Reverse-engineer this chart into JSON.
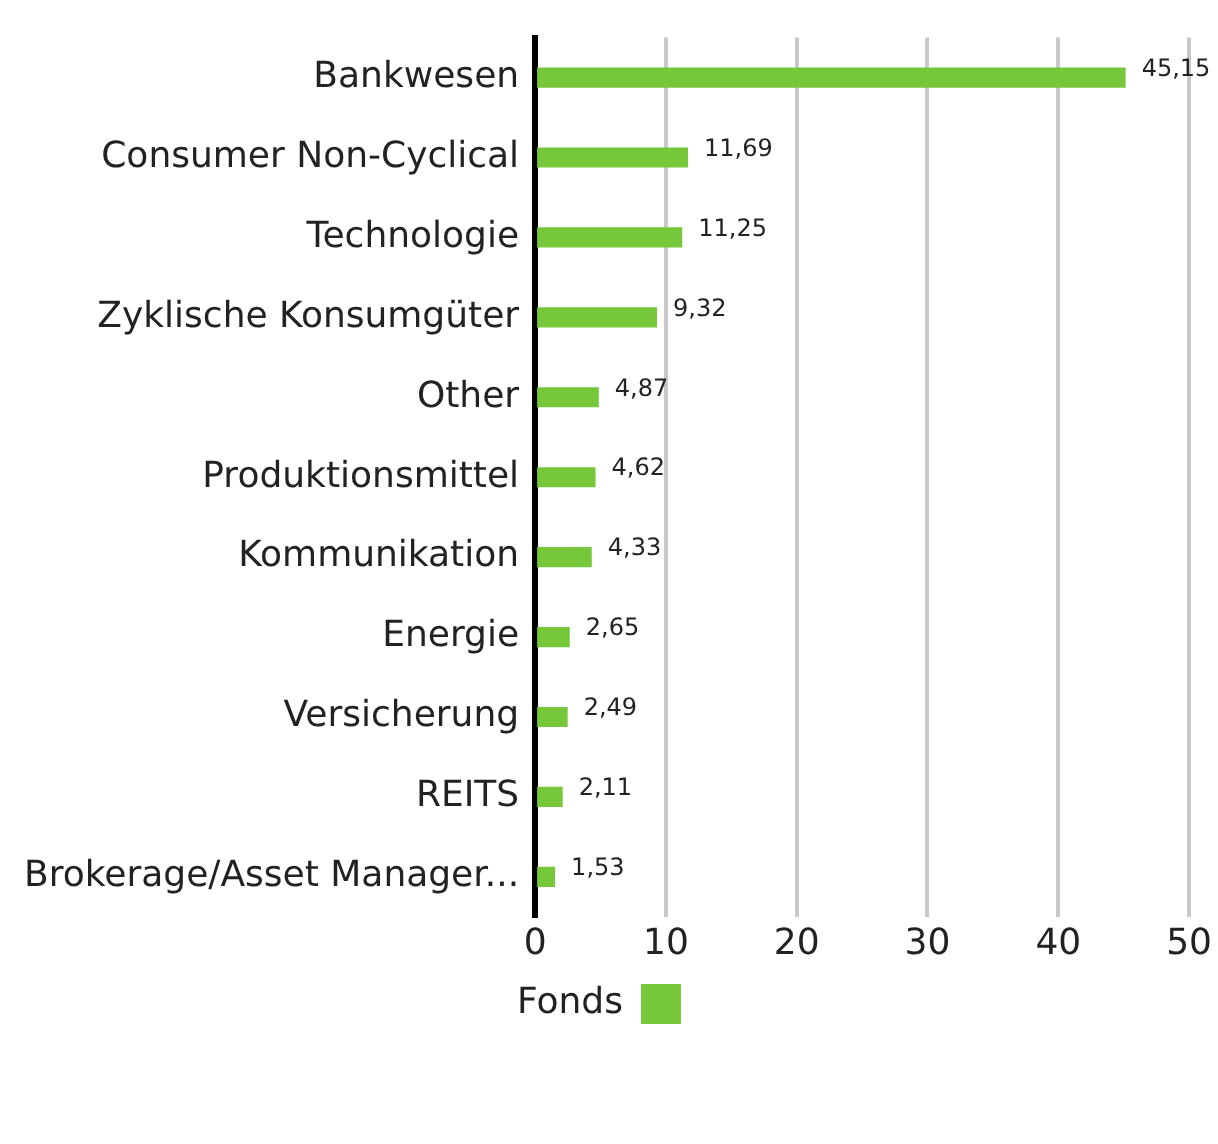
{
  "chart_data": {
    "type": "bar",
    "orientation": "horizontal",
    "categories": [
      "Bankwesen",
      "Consumer Non-Cyclical",
      "Technologie",
      "Zyklische Konsumgüter",
      "Other",
      "Produktionsmittel",
      "Kommunikation",
      "Energie",
      "Versicherung",
      "REITS",
      "Brokerage/Asset Manager..."
    ],
    "series": [
      {
        "name": "Fonds",
        "color": "#76c83a",
        "values": [
          45.15,
          11.69,
          11.25,
          9.32,
          4.87,
          4.62,
          4.33,
          2.65,
          2.49,
          2.11,
          1.53
        ],
        "value_labels": [
          "45,15",
          "11,69",
          "11,25",
          "9,32",
          "4,87",
          "4,62",
          "4,33",
          "2,65",
          "2,49",
          "2,11",
          "1,53"
        ]
      }
    ],
    "xlim": [
      0,
      50
    ],
    "xticks": [
      0,
      10,
      20,
      30,
      40,
      50
    ],
    "grid": "x",
    "legend": "bottom"
  }
}
